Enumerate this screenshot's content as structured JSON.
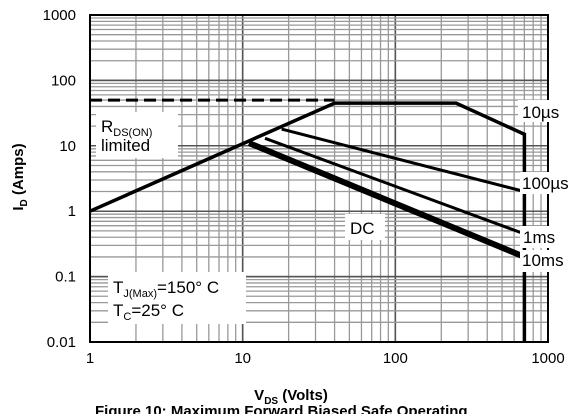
{
  "chart_data": {
    "type": "line",
    "x_scale": "log",
    "y_scale": "log",
    "xlim": [
      1,
      1000
    ],
    "ylim": [
      0.01,
      1000
    ],
    "x_ticks": [
      "1",
      "10",
      "100",
      "1000"
    ],
    "y_ticks": [
      "1000",
      "100",
      "10",
      "1",
      "0.1",
      "0.01"
    ],
    "grid": true,
    "xlabel": {
      "main": "V",
      "sub": "DS",
      "rest": " (Volts)"
    },
    "ylabel": {
      "main": "I",
      "sub": "D",
      "rest": " (Amps)"
    },
    "caption": "Figure 10: Maximum Forward Biased Safe Operating",
    "annotations": {
      "rds_main": "R",
      "rds_sub": "DS(ON)",
      "rds_line2": "limited",
      "tj_main": "T",
      "tj_sub": "J(Max)",
      "tj_rest": "=150° C",
      "tc_main": "T",
      "tc_sub": "C",
      "tc_rest": "=25° C"
    },
    "series": [
      {
        "name": "10µs",
        "points": [
          [
            1,
            1
          ],
          [
            40,
            45
          ],
          [
            250,
            45
          ],
          [
            700,
            15
          ],
          [
            700,
            0.01
          ]
        ]
      },
      {
        "name": "100µs",
        "points": [
          [
            18,
            18
          ],
          [
            700,
            2
          ]
        ]
      },
      {
        "name": "1ms",
        "points": [
          [
            14,
            13
          ],
          [
            700,
            0.45
          ]
        ]
      },
      {
        "name": "10ms",
        "points": [
          [
            11.5,
            11
          ],
          [
            700,
            0.19
          ]
        ]
      },
      {
        "name": "DC",
        "points": [
          [
            11,
            11
          ],
          [
            700,
            0.2
          ]
        ]
      }
    ],
    "rds_limit": {
      "y": 50,
      "x_range": [
        1,
        40
      ]
    }
  }
}
